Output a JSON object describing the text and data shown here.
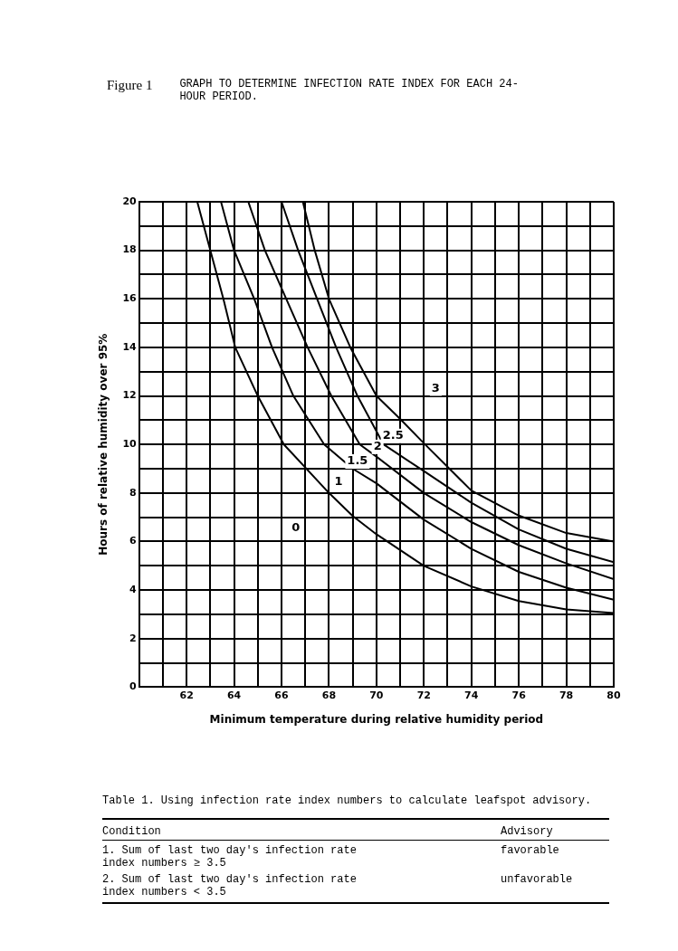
{
  "chart_data": {
    "type": "line",
    "title": "Figure 1",
    "subtitle": "GRAPH TO DETERMINE INFECTION RATE INDEX FOR EACH 24-HOUR PERIOD.",
    "xlabel": "Minimum temperature during relative humidity period",
    "ylabel": "Hours of relative humidity over 95%",
    "xlim": [
      60,
      80
    ],
    "ylim": [
      0,
      20
    ],
    "xticks": [
      {
        "value": 60,
        "label": null
      },
      {
        "value": 61,
        "label": null
      },
      62,
      {
        "value": 63,
        "label": null
      },
      64,
      {
        "value": 65,
        "label": null
      },
      66,
      {
        "value": 67,
        "label": null
      },
      68,
      {
        "value": 69,
        "label": null
      },
      70,
      {
        "value": 71,
        "label": null
      },
      72,
      {
        "value": 73,
        "label": null
      },
      74,
      {
        "value": 75,
        "label": null
      },
      76,
      {
        "value": 77,
        "label": null
      },
      78,
      {
        "value": 79,
        "label": null
      },
      80
    ],
    "yticks": [
      0,
      {
        "value": 1,
        "label": null
      },
      2,
      {
        "value": 3,
        "label": null
      },
      4,
      {
        "value": 5,
        "label": null
      },
      6,
      {
        "value": 7,
        "label": null
      },
      8,
      {
        "value": 9,
        "label": null
      },
      10,
      {
        "value": 11,
        "label": null
      },
      12,
      {
        "value": 13,
        "label": null
      },
      14,
      {
        "value": 15,
        "label": null
      },
      16,
      {
        "value": 17,
        "label": null
      },
      18,
      {
        "value": 19,
        "label": null
      },
      20
    ],
    "grid": true,
    "legend": false,
    "marker": "none",
    "line_style": "solid",
    "series": [
      {
        "color": "#000000",
        "x": [
          62.45,
          63,
          63.55,
          64.05,
          65,
          66.1,
          68,
          69,
          70,
          72,
          74,
          76,
          78,
          80
        ],
        "values": [
          20,
          18,
          16,
          14,
          12,
          10,
          8,
          7.05,
          6.3,
          5,
          4.15,
          3.55,
          3.2,
          3.05
        ]
      },
      {
        "color": "#000000",
        "x": [
          63.45,
          64,
          64.85,
          65.6,
          66.5,
          67.8,
          69,
          70,
          72,
          74,
          76,
          78,
          80
        ],
        "values": [
          20,
          18,
          16,
          14,
          12,
          10,
          9,
          8.4,
          6.9,
          5.7,
          4.75,
          4.1,
          3.6
        ]
      },
      {
        "color": "#000000",
        "x": [
          64.6,
          65.3,
          66.2,
          67.1,
          68.1,
          69.3,
          70,
          72,
          74,
          76,
          78,
          80
        ],
        "values": [
          20,
          18,
          16,
          14,
          12,
          10,
          9.5,
          8,
          6.8,
          5.85,
          5.1,
          4.45
        ]
      },
      {
        "color": "#000000",
        "x": [
          66,
          66.7,
          67.5,
          68.3,
          69.2,
          70.3,
          72,
          74,
          76,
          78,
          80
        ],
        "values": [
          20,
          18,
          16,
          14,
          12,
          10,
          8.9,
          7.6,
          6.5,
          5.7,
          5.15
        ]
      },
      {
        "color": "#000000",
        "x": [
          66.9,
          67.4,
          68,
          68.9,
          70,
          71,
          72,
          74,
          76,
          78,
          80
        ],
        "values": [
          20,
          18,
          16,
          14,
          12,
          11.05,
          10.05,
          8.1,
          7.07,
          6.35,
          6
        ]
      }
    ],
    "annotations": [
      {
        "text": "0",
        "x": 66.6,
        "y": 6.55
      },
      {
        "text": "1",
        "x": 68.4,
        "y": 8.45
      },
      {
        "text": "1.5",
        "x": 69.2,
        "y": 9.3
      },
      {
        "text": "2",
        "x": 70.05,
        "y": 9.9
      },
      {
        "text": "2.5",
        "x": 70.7,
        "y": 10.35
      },
      {
        "text": "3",
        "x": 72.5,
        "y": 12.3
      },
      "Table 1.  Using infection rate index numbers to calculate leafspot advisory.",
      "Condition",
      "Advisory",
      "1.  Sum of last two day's infection rate index numbers ≥ 3.5",
      "favorable",
      "2.  Sum of last two day's infection rate index numbers < 3.5",
      "unfavorable"
    ]
  }
}
